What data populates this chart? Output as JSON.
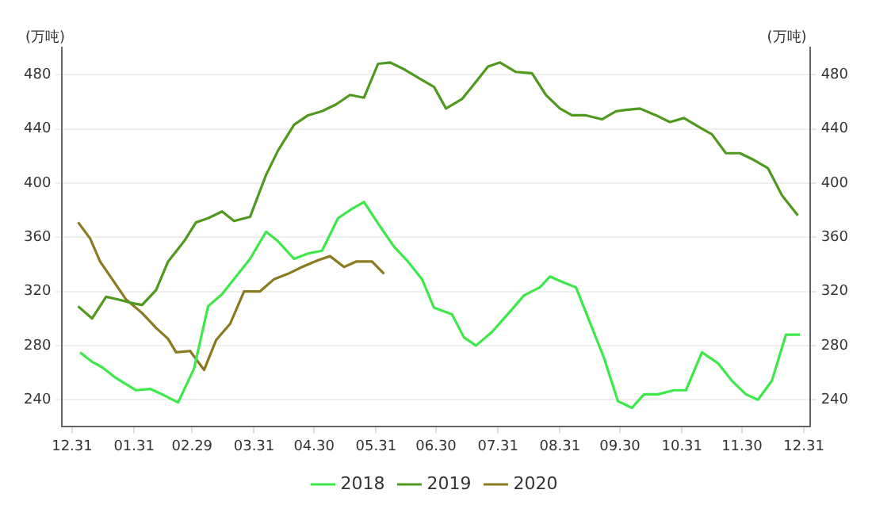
{
  "chart_data": {
    "type": "line",
    "ylabel": "(万吨)",
    "y2label": "(万吨)",
    "xlim": [
      "2019-12-26",
      "2021-01-03"
    ],
    "xticks": [
      {
        "value": "2019-12-31",
        "label": "12.31"
      },
      {
        "value": "2020-01-31",
        "label": "01.31"
      },
      {
        "value": "2020-02-29",
        "label": "02.29"
      },
      {
        "value": "2020-03-31",
        "label": "03.31"
      },
      {
        "value": "2020-04-30",
        "label": "04.30"
      },
      {
        "value": "2020-05-31",
        "label": "05.31"
      },
      {
        "value": "2020-06-30",
        "label": "06.30"
      },
      {
        "value": "2020-07-31",
        "label": "07.31"
      },
      {
        "value": "2020-08-31",
        "label": "08.31"
      },
      {
        "value": "2020-09-30",
        "label": "09.30"
      },
      {
        "value": "2020-10-31",
        "label": "10.31"
      },
      {
        "value": "2020-11-30",
        "label": "11.30"
      },
      {
        "value": "2020-12-31",
        "label": "12.31"
      }
    ],
    "ylim": [
      220,
      500
    ],
    "yticks": [
      240,
      280,
      320,
      360,
      400,
      440,
      480
    ],
    "y2lim": [
      220,
      500
    ],
    "y2ticks": [
      240,
      280,
      320,
      360,
      400,
      440,
      480
    ],
    "grid": "y",
    "legend": "bottom",
    "marker": "none",
    "line_style": "solid",
    "series": [
      {
        "name": "2018",
        "color": "#3ee84a",
        "x": [
          "2020-01-04",
          "2020-01-10",
          "2020-01-15",
          "2020-01-22",
          "2020-02-01",
          "2020-02-08",
          "2020-02-14",
          "2020-02-22",
          "2020-03-01",
          "2020-03-08",
          "2020-03-15",
          "2020-03-22",
          "2020-03-29",
          "2020-04-06",
          "2020-04-12",
          "2020-04-20",
          "2020-04-27",
          "2020-05-04",
          "2020-05-12",
          "2020-05-19",
          "2020-05-25",
          "2020-06-02",
          "2020-06-09",
          "2020-06-16",
          "2020-06-23",
          "2020-06-29",
          "2020-07-08",
          "2020-07-14",
          "2020-07-20",
          "2020-07-28",
          "2020-08-06",
          "2020-08-13",
          "2020-08-21",
          "2020-08-26",
          "2020-09-01",
          "2020-09-08",
          "2020-09-15",
          "2020-09-22",
          "2020-09-29",
          "2020-10-06",
          "2020-10-12",
          "2020-10-19",
          "2020-10-27",
          "2020-11-02",
          "2020-11-10",
          "2020-11-18",
          "2020-11-25",
          "2020-12-02",
          "2020-12-08",
          "2020-12-15",
          "2020-12-22",
          "2020-12-29"
        ],
        "values": [
          275,
          268,
          264,
          256,
          247,
          248,
          244,
          238,
          263,
          309,
          318,
          331,
          344,
          364,
          357,
          344,
          348,
          350,
          374,
          381,
          386,
          368,
          353,
          342,
          329,
          308,
          303,
          286,
          280,
          290,
          305,
          317,
          323,
          331,
          327,
          323,
          297,
          271,
          239,
          234,
          244,
          244,
          247,
          247,
          275,
          267,
          254,
          244,
          240,
          254,
          288,
          288
        ]
      },
      {
        "name": "2019",
        "color": "#4f9a1e",
        "x": [
          "2020-01-03",
          "2020-01-10",
          "2020-01-17",
          "2020-01-23",
          "2020-01-31",
          "2020-02-04",
          "2020-02-11",
          "2020-02-17",
          "2020-02-25",
          "2020-03-02",
          "2020-03-08",
          "2020-03-15",
          "2020-03-21",
          "2020-03-29",
          "2020-04-06",
          "2020-04-12",
          "2020-04-20",
          "2020-04-27",
          "2020-05-04",
          "2020-05-11",
          "2020-05-18",
          "2020-05-25",
          "2020-06-01",
          "2020-06-07",
          "2020-06-14",
          "2020-06-22",
          "2020-06-29",
          "2020-07-05",
          "2020-07-13",
          "2020-07-19",
          "2020-07-26",
          "2020-08-01",
          "2020-08-09",
          "2020-08-17",
          "2020-08-24",
          "2020-08-31",
          "2020-09-06",
          "2020-09-13",
          "2020-09-21",
          "2020-09-28",
          "2020-10-03",
          "2020-10-10",
          "2020-10-18",
          "2020-10-25",
          "2020-11-01",
          "2020-11-09",
          "2020-11-15",
          "2020-11-22",
          "2020-11-29",
          "2020-12-06",
          "2020-12-13",
          "2020-12-20",
          "2020-12-28"
        ],
        "values": [
          309,
          300,
          316,
          314,
          311,
          310,
          321,
          342,
          357,
          371,
          374,
          379,
          372,
          375,
          406,
          424,
          443,
          450,
          453,
          458,
          465,
          463,
          488,
          489,
          484,
          477,
          471,
          455,
          462,
          473,
          486,
          489,
          482,
          481,
          465,
          455,
          450,
          450,
          447,
          453,
          454,
          455,
          450,
          445,
          448,
          441,
          436,
          422,
          422,
          417,
          411,
          391,
          376
        ]
      },
      {
        "name": "2020",
        "color": "#8a7a22",
        "x": [
          "2020-01-03",
          "2020-01-09",
          "2020-01-14",
          "2020-01-21",
          "2020-01-27",
          "2020-02-04",
          "2020-02-11",
          "2020-02-17",
          "2020-02-21",
          "2020-02-28",
          "2020-03-06",
          "2020-03-12",
          "2020-03-19",
          "2020-03-26",
          "2020-04-03",
          "2020-04-10",
          "2020-04-17",
          "2020-04-24",
          "2020-05-02",
          "2020-05-08",
          "2020-05-15",
          "2020-05-21",
          "2020-05-29",
          "2020-06-04"
        ],
        "values": [
          371,
          359,
          342,
          327,
          314,
          304,
          293,
          285,
          275,
          276,
          262,
          284,
          296,
          320,
          320,
          329,
          333,
          338,
          343,
          346,
          338,
          342,
          342,
          333
        ]
      }
    ]
  }
}
